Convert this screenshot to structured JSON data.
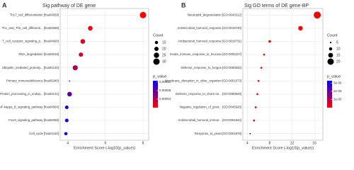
{
  "chart_data": [
    {
      "type": "scatter",
      "panel_label": "A",
      "title": "Sig pathway of DE gene",
      "x_label": "Enrichment Score (-log10(p_value))",
      "categories": [
        "Th17_cell_differentiation [hsa04659]",
        "Th1_and_Th2_cell_differenti... [hsa04658]",
        "T_cell_receptor_signaling_p... [hsa04660]",
        "RNA_degradation [hsa03018]",
        "Ubiquitin_mediated_proteoly... [hsa04120]",
        "Primary_immunodeficiency [hsa05340]",
        "Protein_processing_in_endop... [hsa04141]",
        "NF-kappa_B_signaling_pathway [hsa04064]",
        "FoxO_signaling_pathway [hsa04068]",
        "Cell_cycle [hsa04110]"
      ],
      "values": [
        8.0,
        5.2,
        4.8,
        4.7,
        4.4,
        4.1,
        4.1,
        3.95,
        3.95,
        3.9
      ],
      "sizes": [
        30,
        22,
        22,
        20,
        24,
        6,
        22,
        17,
        17,
        15
      ],
      "p_values": [
        1e-08,
        6.3e-06,
        1.6e-05,
        2e-05,
        4e-05,
        7.9e-05,
        8e-05,
        0.00011,
        0.00011,
        0.000126
      ],
      "xlim": [
        3.6,
        8.3
      ],
      "xticks": [
        4,
        6,
        8
      ],
      "size_legend": {
        "title": "Count",
        "values": [
          15,
          20,
          25,
          30
        ]
      },
      "color_legend": {
        "title": "p_value",
        "ticks": [
          0.00012,
          8e-05,
          4e-05
        ],
        "lim": [
          0,
          0.000126
        ]
      },
      "color_low": "#ff0000",
      "color_high": "#0000ff"
    },
    {
      "type": "scatter",
      "panel_label": "B",
      "title": "Sig GO terms of DE gene-BP",
      "x_label": "Enrichment Score (-log10(p_value))",
      "categories": [
        "Neutrophil_degranulation [GO:0043312]",
        "Antimicrobial_humoral_response [GO:0019730]",
        "Antibacterial_humoral_response [GO:0019731]",
        "Innate_immune_response_in_mucosa [GO:0002227]",
        "Defense_response_to_fungus [GO:0050832]",
        "Membrane_disruption_in_other_organism [GO:0051673]",
        "Defense_response_to_Gram-ne... [GO:0050829]",
        "Negative_regulation_of_grow... [GO:0045926]",
        "Antimicrobial_humoral_immun... [GO:0061844]",
        "Response_to_yeast [GO:0001878]"
      ],
      "values": [
        16.5,
        13.5,
        8,
        7,
        6.5,
        6,
        5.8,
        5.5,
        5.2,
        4.5
      ],
      "sizes": [
        22,
        14,
        8,
        6,
        6,
        6,
        6,
        6,
        6,
        4
      ],
      "p_values": [
        3e-17,
        3e-14,
        1e-08,
        1e-07,
        3e-07,
        1e-06,
        1.6e-06,
        3e-06,
        6e-06,
        3.2e-05
      ],
      "xlim": [
        3.2,
        17.5
      ],
      "xticks": [
        4,
        8,
        12,
        16
      ],
      "size_legend": {
        "title": "Count",
        "values": [
          5,
          10,
          15,
          20
        ]
      },
      "color_legend": {
        "title": "p_value",
        "ticks": [
          {
            "value": 3e-05,
            "label": "3e-05"
          },
          {
            "value": 2e-05,
            "label": "2e-05"
          },
          {
            "value": 1e-05,
            "label": "1e-05"
          }
        ],
        "lim": [
          0,
          3.3e-05
        ]
      },
      "color_low": "#ff0000",
      "color_high": "#0000ff"
    }
  ]
}
